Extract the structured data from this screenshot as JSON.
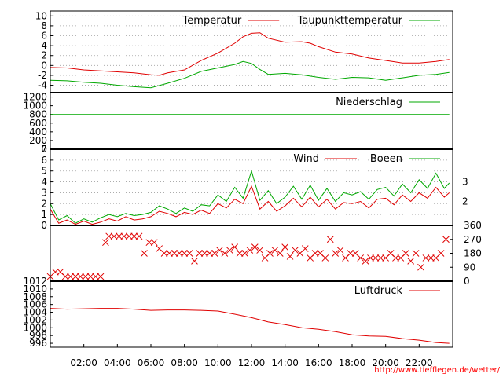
{
  "footer_url": "http://www.tiefflegen.de/wetter/",
  "colors": {
    "red": "#e00000",
    "green": "#00a800",
    "grid": "#a0a0a0",
    "frame": "#000000"
  },
  "chart_data": [
    {
      "type": "line",
      "panel": "temperature",
      "ylim": [
        -5.5,
        11
      ],
      "yticks": [
        "10",
        "8",
        "6",
        "4",
        "2",
        "0",
        "-2",
        "-4"
      ],
      "ytick_values": [
        10,
        8,
        6,
        4,
        2,
        0,
        -2,
        -4
      ],
      "grid": true,
      "legend": "top-right",
      "series": [
        {
          "name": "Temperatur",
          "color": "#e00000",
          "x": [
            0.0,
            1.0,
            2.0,
            3.0,
            4.0,
            5.0,
            6.0,
            6.5,
            7.0,
            8.0,
            9.0,
            10.0,
            10.5,
            11.0,
            11.5,
            12.0,
            12.5,
            13.0,
            14.0,
            15.0,
            15.5,
            16.0,
            17.0,
            18.0,
            19.0,
            20.0,
            21.0,
            22.0,
            23.0,
            23.8
          ],
          "y": [
            -0.4,
            -0.5,
            -0.9,
            -1.1,
            -1.3,
            -1.5,
            -1.9,
            -2.0,
            -1.5,
            -0.9,
            1.0,
            2.5,
            3.5,
            4.5,
            5.8,
            6.5,
            6.6,
            5.5,
            4.7,
            4.8,
            4.5,
            3.8,
            2.7,
            2.3,
            1.5,
            1.0,
            0.5,
            0.5,
            0.8,
            1.2
          ]
        },
        {
          "name": "Taupunkttemperatur",
          "color": "#00a800",
          "x": [
            0.0,
            1.0,
            2.0,
            3.0,
            4.0,
            5.0,
            6.0,
            7.0,
            8.0,
            9.0,
            10.0,
            11.0,
            11.5,
            12.0,
            12.5,
            13.0,
            14.0,
            15.0,
            16.0,
            17.0,
            18.0,
            19.0,
            20.0,
            21.0,
            22.0,
            23.0,
            23.8
          ],
          "y": [
            -3.0,
            -3.1,
            -3.4,
            -3.6,
            -4.0,
            -4.3,
            -4.5,
            -3.6,
            -2.6,
            -1.2,
            -0.5,
            0.2,
            0.8,
            0.4,
            -0.8,
            -1.8,
            -1.6,
            -1.9,
            -2.4,
            -2.8,
            -2.4,
            -2.5,
            -3.0,
            -2.5,
            -2.0,
            -1.8,
            -1.4
          ]
        }
      ]
    },
    {
      "type": "line",
      "panel": "precipitation",
      "ylim": [
        0,
        1300
      ],
      "yticks": [
        "1200",
        "1000",
        "800",
        "600",
        "400",
        "200",
        "0"
      ],
      "ytick_values": [
        1200,
        1000,
        800,
        600,
        400,
        200,
        0
      ],
      "legend": "top-right",
      "series": [
        {
          "name": "Niederschlag",
          "color": "#00a800",
          "x": [
            0,
            23.8
          ],
          "y": [
            800,
            800
          ]
        }
      ]
    },
    {
      "type": "line",
      "panel": "wind",
      "ylim": [
        0,
        7
      ],
      "yticks": [
        "7",
        "6",
        "5",
        "4",
        "3",
        "2",
        "1",
        "0"
      ],
      "ytick_values": [
        7,
        6,
        5,
        4,
        3,
        2,
        1,
        0
      ],
      "right_labels": [
        "3",
        "2"
      ],
      "right_label_values": [
        4.0,
        2.2
      ],
      "grid": true,
      "legend": "top-right",
      "series": [
        {
          "name": "Wind",
          "color": "#e00000",
          "x": [
            0.0,
            0.5,
            1.0,
            1.5,
            2.0,
            2.5,
            3.0,
            3.5,
            4.0,
            4.5,
            5.0,
            5.5,
            6.0,
            6.5,
            7.0,
            7.5,
            8.0,
            8.5,
            9.0,
            9.5,
            10.0,
            10.5,
            11.0,
            11.5,
            12.0,
            12.5,
            13.0,
            13.5,
            14.0,
            14.5,
            15.0,
            15.5,
            16.0,
            16.5,
            17.0,
            17.5,
            18.0,
            18.5,
            19.0,
            19.5,
            20.0,
            20.5,
            21.0,
            21.5,
            22.0,
            22.5,
            23.0,
            23.5,
            23.8
          ],
          "y": [
            1.5,
            0.2,
            0.5,
            0.1,
            0.4,
            0.1,
            0.3,
            0.6,
            0.4,
            0.8,
            0.5,
            0.6,
            0.8,
            1.3,
            1.1,
            0.8,
            1.2,
            1.0,
            1.4,
            1.1,
            2.0,
            1.6,
            2.4,
            2.0,
            3.6,
            1.5,
            2.2,
            1.3,
            1.8,
            2.5,
            1.7,
            2.6,
            1.7,
            2.4,
            1.5,
            2.1,
            2.0,
            2.2,
            1.6,
            2.4,
            2.5,
            1.9,
            2.8,
            2.2,
            3.0,
            2.5,
            3.5,
            2.6,
            3.0
          ]
        },
        {
          "name": "Boeen",
          "color": "#00a800",
          "x": [
            0.0,
            0.5,
            1.0,
            1.5,
            2.0,
            2.5,
            3.0,
            3.5,
            4.0,
            4.5,
            5.0,
            5.5,
            6.0,
            6.5,
            7.0,
            7.5,
            8.0,
            8.5,
            9.0,
            9.5,
            10.0,
            10.5,
            11.0,
            11.5,
            12.0,
            12.5,
            13.0,
            13.5,
            14.0,
            14.5,
            15.0,
            15.5,
            16.0,
            16.5,
            17.0,
            17.5,
            18.0,
            18.5,
            19.0,
            19.5,
            20.0,
            20.5,
            21.0,
            21.5,
            22.0,
            22.5,
            23.0,
            23.5,
            23.8
          ],
          "y": [
            2.0,
            0.5,
            0.9,
            0.2,
            0.6,
            0.3,
            0.7,
            1.0,
            0.8,
            1.1,
            0.9,
            1.0,
            1.2,
            1.8,
            1.5,
            1.1,
            1.6,
            1.3,
            1.9,
            1.8,
            2.8,
            2.2,
            3.5,
            2.5,
            5.0,
            2.3,
            3.2,
            2.0,
            2.6,
            3.6,
            2.4,
            3.7,
            2.3,
            3.4,
            2.2,
            3.0,
            2.8,
            3.1,
            2.4,
            3.3,
            3.5,
            2.7,
            3.8,
            3.0,
            4.2,
            3.4,
            4.8,
            3.4,
            3.9
          ]
        }
      ]
    },
    {
      "type": "scatter",
      "panel": "wind_direction",
      "ylim": [
        0,
        360
      ],
      "yticks_right": [
        "360",
        "270",
        "180",
        "90",
        "0"
      ],
      "ytick_values": [
        360,
        270,
        180,
        90,
        0
      ],
      "marker": "x",
      "series": [
        {
          "name": "",
          "color": "#e00000",
          "x": [
            0.0,
            0.3,
            0.6,
            0.9,
            1.2,
            1.5,
            1.8,
            2.1,
            2.4,
            2.7,
            3.0,
            3.3,
            3.5,
            3.8,
            4.1,
            4.4,
            4.7,
            5.0,
            5.3,
            5.6,
            5.9,
            6.2,
            6.5,
            6.8,
            7.1,
            7.4,
            7.7,
            8.0,
            8.3,
            8.6,
            8.9,
            9.2,
            9.5,
            9.8,
            10.1,
            10.4,
            10.7,
            11.0,
            11.3,
            11.6,
            11.9,
            12.2,
            12.5,
            12.8,
            13.1,
            13.4,
            13.7,
            14.0,
            14.3,
            14.6,
            14.9,
            15.2,
            15.5,
            15.8,
            16.1,
            16.4,
            16.7,
            17.0,
            17.3,
            17.6,
            17.9,
            18.2,
            18.5,
            18.8,
            19.1,
            19.4,
            19.7,
            20.0,
            20.3,
            20.6,
            20.9,
            21.2,
            21.5,
            21.8,
            22.1,
            22.4,
            22.7,
            23.0,
            23.3,
            23.6
          ],
          "y": [
            30,
            60,
            60,
            30,
            30,
            30,
            30,
            30,
            30,
            30,
            30,
            250,
            290,
            290,
            290,
            290,
            290,
            290,
            290,
            180,
            250,
            250,
            210,
            180,
            180,
            180,
            180,
            180,
            180,
            130,
            180,
            180,
            180,
            180,
            200,
            180,
            200,
            220,
            180,
            180,
            200,
            220,
            200,
            150,
            180,
            200,
            180,
            220,
            160,
            200,
            180,
            210,
            150,
            180,
            180,
            150,
            270,
            180,
            200,
            150,
            180,
            180,
            150,
            130,
            150,
            150,
            150,
            150,
            180,
            150,
            150,
            180,
            130,
            180,
            90,
            150,
            150,
            150,
            180,
            270
          ]
        }
      ]
    },
    {
      "type": "line",
      "panel": "pressure",
      "ylim": [
        995,
        1012
      ],
      "yticks": [
        "1012",
        "1010",
        "1008",
        "1006",
        "1004",
        "1002",
        "1000",
        "998",
        "996"
      ],
      "ytick_values": [
        1012,
        1010,
        1008,
        1006,
        1004,
        1002,
        1000,
        998,
        996
      ],
      "legend": "top-right",
      "xticks": [
        "02:00",
        "04:00",
        "06:00",
        "08:00",
        "10:00",
        "12:00",
        "14:00",
        "16:00",
        "18:00",
        "20:00",
        "22:00"
      ],
      "xtick_values": [
        2,
        4,
        6,
        8,
        10,
        12,
        14,
        16,
        18,
        20,
        22
      ],
      "series": [
        {
          "name": "Luftdruck",
          "color": "#e00000",
          "x": [
            0.0,
            1.0,
            2.0,
            3.0,
            4.0,
            5.0,
            6.0,
            7.0,
            8.0,
            9.0,
            10.0,
            11.0,
            12.0,
            13.0,
            14.0,
            15.0,
            16.0,
            17.0,
            18.0,
            19.0,
            20.0,
            21.0,
            22.0,
            23.0,
            23.8
          ],
          "y": [
            1005.0,
            1004.8,
            1004.9,
            1005.0,
            1005.0,
            1004.8,
            1004.5,
            1004.6,
            1004.6,
            1004.5,
            1004.3,
            1003.5,
            1002.6,
            1001.5,
            1000.8,
            1000.0,
            999.6,
            999.0,
            998.2,
            997.9,
            997.8,
            997.2,
            996.8,
            996.2,
            996.0
          ]
        }
      ]
    }
  ]
}
